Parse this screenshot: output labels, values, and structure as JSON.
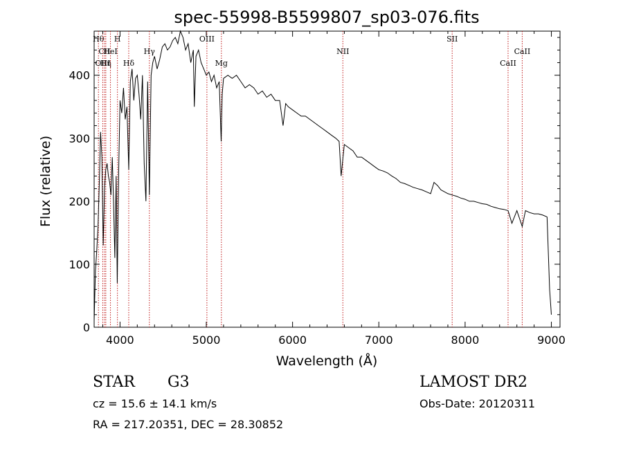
{
  "chart_data": {
    "type": "line",
    "title": "spec-55998-B5599807_sp03-076.fits",
    "xlabel": "Wavelength (Å)",
    "ylabel": "Flux (relative)",
    "xlim": [
      3700,
      9100
    ],
    "ylim": [
      0,
      470
    ],
    "x_ticks": [
      4000,
      5000,
      6000,
      7000,
      8000,
      9000
    ],
    "y_ticks": [
      0,
      100,
      200,
      300,
      400
    ],
    "grid": false,
    "line_color": "#000000",
    "marker_color": "#c01818",
    "series": [
      {
        "x": [
          3700,
          3715,
          3730,
          3745,
          3760,
          3775,
          3790,
          3805,
          3820,
          3835,
          3850,
          3865,
          3880,
          3895,
          3910,
          3925,
          3940,
          3955,
          3968,
          3985,
          4000,
          4020,
          4040,
          4060,
          4080,
          4101,
          4120,
          4140,
          4160,
          4180,
          4200,
          4220,
          4240,
          4260,
          4280,
          4300,
          4320,
          4340,
          4360,
          4380,
          4400,
          4430,
          4460,
          4490,
          4520,
          4550,
          4580,
          4610,
          4640,
          4670,
          4700,
          4730,
          4760,
          4790,
          4820,
          4850,
          4861,
          4880,
          4910,
          4940,
          4970,
          5000,
          5030,
          5060,
          5090,
          5120,
          5150,
          5172,
          5184,
          5200,
          5250,
          5300,
          5350,
          5400,
          5450,
          5500,
          5550,
          5600,
          5650,
          5700,
          5750,
          5800,
          5850,
          5890,
          5920,
          5950,
          6000,
          6050,
          6100,
          6150,
          6200,
          6250,
          6300,
          6350,
          6400,
          6450,
          6500,
          6540,
          6563,
          6600,
          6650,
          6700,
          6750,
          6800,
          6850,
          6900,
          6950,
          7000,
          7050,
          7100,
          7150,
          7200,
          7250,
          7300,
          7350,
          7400,
          7450,
          7500,
          7550,
          7600,
          7640,
          7680,
          7720,
          7760,
          7800,
          7850,
          7900,
          7950,
          8000,
          8050,
          8100,
          8150,
          8200,
          8250,
          8300,
          8350,
          8400,
          8450,
          8498,
          8542,
          8600,
          8662,
          8700,
          8750,
          8800,
          8850,
          8900,
          8950,
          8980,
          9000
        ],
        "y": [
          10,
          90,
          120,
          160,
          230,
          310,
          270,
          130,
          220,
          250,
          260,
          240,
          230,
          210,
          270,
          200,
          110,
          240,
          70,
          250,
          360,
          340,
          380,
          330,
          350,
          250,
          390,
          410,
          360,
          395,
          400,
          370,
          330,
          400,
          260,
          200,
          390,
          210,
          400,
          420,
          430,
          410,
          425,
          445,
          450,
          440,
          445,
          455,
          460,
          450,
          470,
          460,
          440,
          450,
          420,
          440,
          350,
          430,
          440,
          420,
          410,
          400,
          405,
          390,
          400,
          380,
          390,
          295,
          370,
          395,
          400,
          395,
          400,
          390,
          380,
          385,
          380,
          370,
          375,
          365,
          370,
          360,
          360,
          320,
          355,
          350,
          345,
          340,
          335,
          335,
          330,
          325,
          320,
          315,
          310,
          305,
          300,
          295,
          240,
          290,
          285,
          280,
          270,
          270,
          265,
          260,
          255,
          250,
          248,
          245,
          240,
          236,
          230,
          228,
          225,
          222,
          220,
          218,
          215,
          212,
          230,
          225,
          218,
          215,
          212,
          210,
          208,
          205,
          203,
          200,
          200,
          198,
          196,
          195,
          192,
          190,
          188,
          187,
          185,
          165,
          185,
          160,
          185,
          182,
          180,
          180,
          178,
          175,
          60,
          20
        ]
      }
    ],
    "line_markers": [
      {
        "x": 3750,
        "label": "Hθ",
        "row": 0
      },
      {
        "x": 3820,
        "label": "CII",
        "row": 1
      },
      {
        "x": 3800,
        "label": "OIII",
        "row": 2
      },
      {
        "x": 3835,
        "label": "Hη",
        "row": 2
      },
      {
        "x": 3889,
        "label": "HeI",
        "row": 1
      },
      {
        "x": 3970,
        "label": "H",
        "row": 0
      },
      {
        "x": 4101,
        "label": "Hδ",
        "row": 2
      },
      {
        "x": 4340,
        "label": "Hγ",
        "row": 1
      },
      {
        "x": 5007,
        "label": "OIII",
        "row": 0
      },
      {
        "x": 5175,
        "label": "Mg",
        "row": 2
      },
      {
        "x": 6583,
        "label": "NII",
        "row": 1
      },
      {
        "x": 7850,
        "label": "SII",
        "row": 0
      },
      {
        "x": 8498,
        "label": "CaII",
        "row": 2
      },
      {
        "x": 8662,
        "label": "CaII",
        "row": 1
      }
    ]
  },
  "info": {
    "object_class": "STAR",
    "subclass": "G3",
    "survey": "LAMOST DR2",
    "redshift_line": "cz = 15.6 ± 14.1 km/s",
    "obs_date_line": "Obs-Date: 20120311",
    "coords_line": "RA = 217.20351, DEC =  28.30852"
  }
}
